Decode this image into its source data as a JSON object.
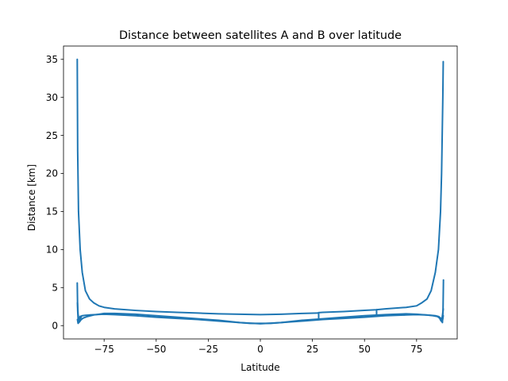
{
  "chart_data": {
    "type": "line",
    "title": "Distance between satellites A and B over latitude",
    "xlabel": "Latitude",
    "ylabel": "Distance [km]",
    "xlim": [
      -94.5,
      94.5
    ],
    "ylim": [
      -1.75,
      36.75
    ],
    "xticks": [
      -75,
      -50,
      -25,
      0,
      25,
      50,
      75
    ],
    "xtick_labels": [
      "−75",
      "−50",
      "−25",
      "0",
      "25",
      "50",
      "75"
    ],
    "yticks": [
      0,
      5,
      10,
      15,
      20,
      25,
      30,
      35
    ],
    "ytick_labels": [
      "0",
      "5",
      "10",
      "15",
      "20",
      "25",
      "30",
      "35"
    ],
    "grid": false,
    "legend": "none",
    "line_color": "#1f77b4",
    "series": [
      {
        "x": [
          -87.9,
          -87.7,
          -87.3,
          -86.5,
          -85.5,
          -84,
          -82,
          -80,
          -77.5,
          -75,
          -70,
          -60,
          -50,
          -40,
          -30,
          -20,
          -10,
          0,
          10,
          20,
          27.5,
          28,
          30,
          40,
          50,
          55.6,
          56,
          60,
          70,
          75,
          77.5,
          80,
          82,
          84,
          85.5,
          86.5,
          87,
          87.3,
          87.6,
          87.8
        ],
        "values": [
          35.0,
          23.0,
          15.0,
          10.0,
          7.0,
          4.6,
          3.5,
          3.0,
          2.6,
          2.4,
          2.2,
          2.0,
          1.85,
          1.75,
          1.65,
          1.55,
          1.5,
          1.45,
          1.5,
          1.6,
          1.65,
          1.7,
          1.75,
          1.85,
          2.0,
          2.08,
          2.1,
          2.2,
          2.4,
          2.6,
          3.0,
          3.5,
          4.6,
          7.0,
          10.0,
          15.0,
          20.0,
          25.0,
          30.0,
          34.7
        ]
      },
      {
        "x": [
          -87.8,
          -87.5,
          -86.8,
          -86,
          -85,
          -83,
          -80,
          -75,
          -70,
          -60,
          -50,
          -40,
          -30,
          -20,
          -10,
          -5,
          0,
          5,
          10,
          20,
          30,
          40,
          50,
          60,
          70,
          75,
          80,
          83,
          85,
          86,
          86.8,
          87.3,
          87.6,
          87.8
        ],
        "values": [
          0.8,
          0.3,
          0.5,
          0.8,
          1.0,
          1.2,
          1.4,
          1.6,
          1.6,
          1.5,
          1.3,
          1.1,
          0.9,
          0.7,
          0.4,
          0.3,
          0.3,
          0.3,
          0.4,
          0.7,
          0.9,
          1.1,
          1.3,
          1.45,
          1.55,
          1.5,
          1.4,
          1.3,
          1.2,
          1.0,
          0.6,
          0.5,
          0.9,
          1.3
        ]
      },
      {
        "x": [
          -87.9,
          -87.7,
          -87.4,
          -87.0,
          -86.5,
          -85.5,
          -84,
          -82,
          -79,
          -75,
          -70,
          -60,
          -50,
          -40,
          -30,
          -20,
          -10,
          0,
          10,
          20,
          30,
          40,
          50,
          60,
          70,
          75,
          79,
          82,
          84,
          85.5,
          86.5,
          87,
          87.4,
          87.7,
          87.9
        ],
        "values": [
          5.6,
          2.0,
          0.4,
          0.8,
          1.2,
          1.3,
          1.35,
          1.4,
          1.45,
          1.5,
          1.45,
          1.3,
          1.1,
          0.95,
          0.8,
          0.6,
          0.4,
          0.25,
          0.4,
          0.6,
          0.8,
          0.95,
          1.1,
          1.3,
          1.4,
          1.45,
          1.4,
          1.35,
          1.3,
          1.2,
          1.0,
          0.8,
          0.4,
          2.0,
          6.0
        ]
      },
      {
        "x": [
          -87.8,
          -87.5,
          -87.0,
          -86.5,
          -86
        ],
        "values": [
          3.0,
          1.5,
          0.6,
          0.9,
          1.1
        ]
      },
      {
        "x": [
          86,
          86.5,
          87,
          87.5,
          87.8
        ],
        "values": [
          1.1,
          0.9,
          0.6,
          1.5,
          2.2
        ]
      },
      {
        "x": [
          28,
          28
        ],
        "values": [
          0.9,
          1.7
        ]
      },
      {
        "x": [
          55.8,
          55.8
        ],
        "values": [
          1.3,
          2.1
        ]
      }
    ]
  }
}
